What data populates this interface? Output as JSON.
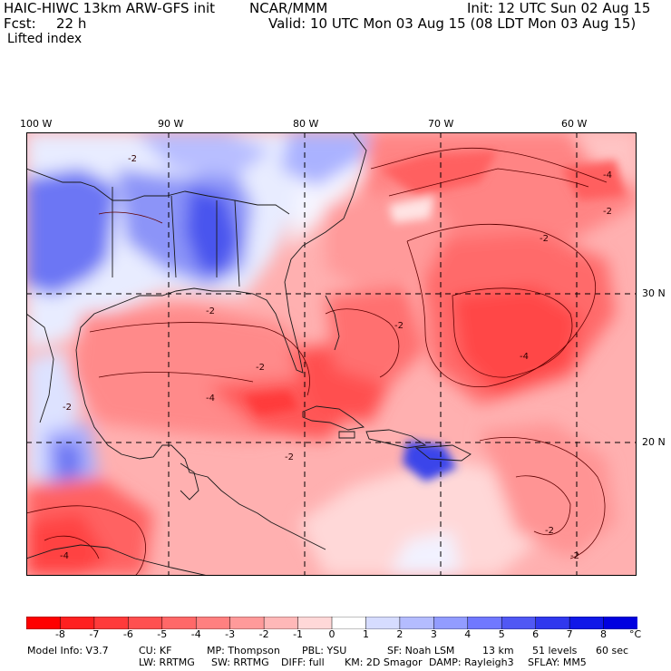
{
  "header": {
    "model": "HAIC-HIWC 13km ARW-GFS init",
    "org": "NCAR/MMM",
    "init": "Init: 12 UTC Sun 02 Aug 15",
    "fcst_label": "Fcst:",
    "fcst_value": "22 h",
    "valid": "Valid: 10 UTC Mon 03 Aug 15 (08 LDT Mon 03 Aug 15)",
    "field": "Lifted index"
  },
  "map": {
    "lon_labels": [
      "100 W",
      "90 W",
      "80 W",
      "70 W",
      "60 W"
    ],
    "lat_labels": [
      "30 N",
      "20 N"
    ],
    "contour_labels": [
      "-2",
      "-2",
      "-2",
      "-2",
      "-4",
      "-2",
      "-4",
      "-2",
      "-4",
      "-2",
      "-2",
      "-2",
      "-4",
      "-2"
    ]
  },
  "colorbar": {
    "unit": "°C",
    "ticks": [
      "-8",
      "-7",
      "-6",
      "-5",
      "-4",
      "-3",
      "-2",
      "-1",
      "0",
      "1",
      "2",
      "3",
      "4",
      "5",
      "6",
      "7",
      "8"
    ],
    "colors": [
      "#ff0000",
      "#ff2020",
      "#ff3a3a",
      "#ff5050",
      "#ff6868",
      "#ff8080",
      "#ff9a9a",
      "#ffb8b8",
      "#ffd8d8",
      "#ffffff",
      "#d6dcff",
      "#b4bcff",
      "#929cff",
      "#7078ff",
      "#5058f4",
      "#3038ee",
      "#1018e8",
      "#0000e0"
    ]
  },
  "model_info": {
    "line1": [
      "Model Info: V3.7",
      "CU: KF",
      "MP: Thompson",
      "PBL: YSU",
      "SF: Noah LSM",
      "13 km",
      "51 levels",
      "60 sec"
    ],
    "line2": [
      "LW: RRTMG",
      "SW: RRTMG",
      "DIFF: full",
      "KM: 2D Smagor",
      "DAMP: Rayleigh3",
      "SFLAY: MM5"
    ]
  }
}
